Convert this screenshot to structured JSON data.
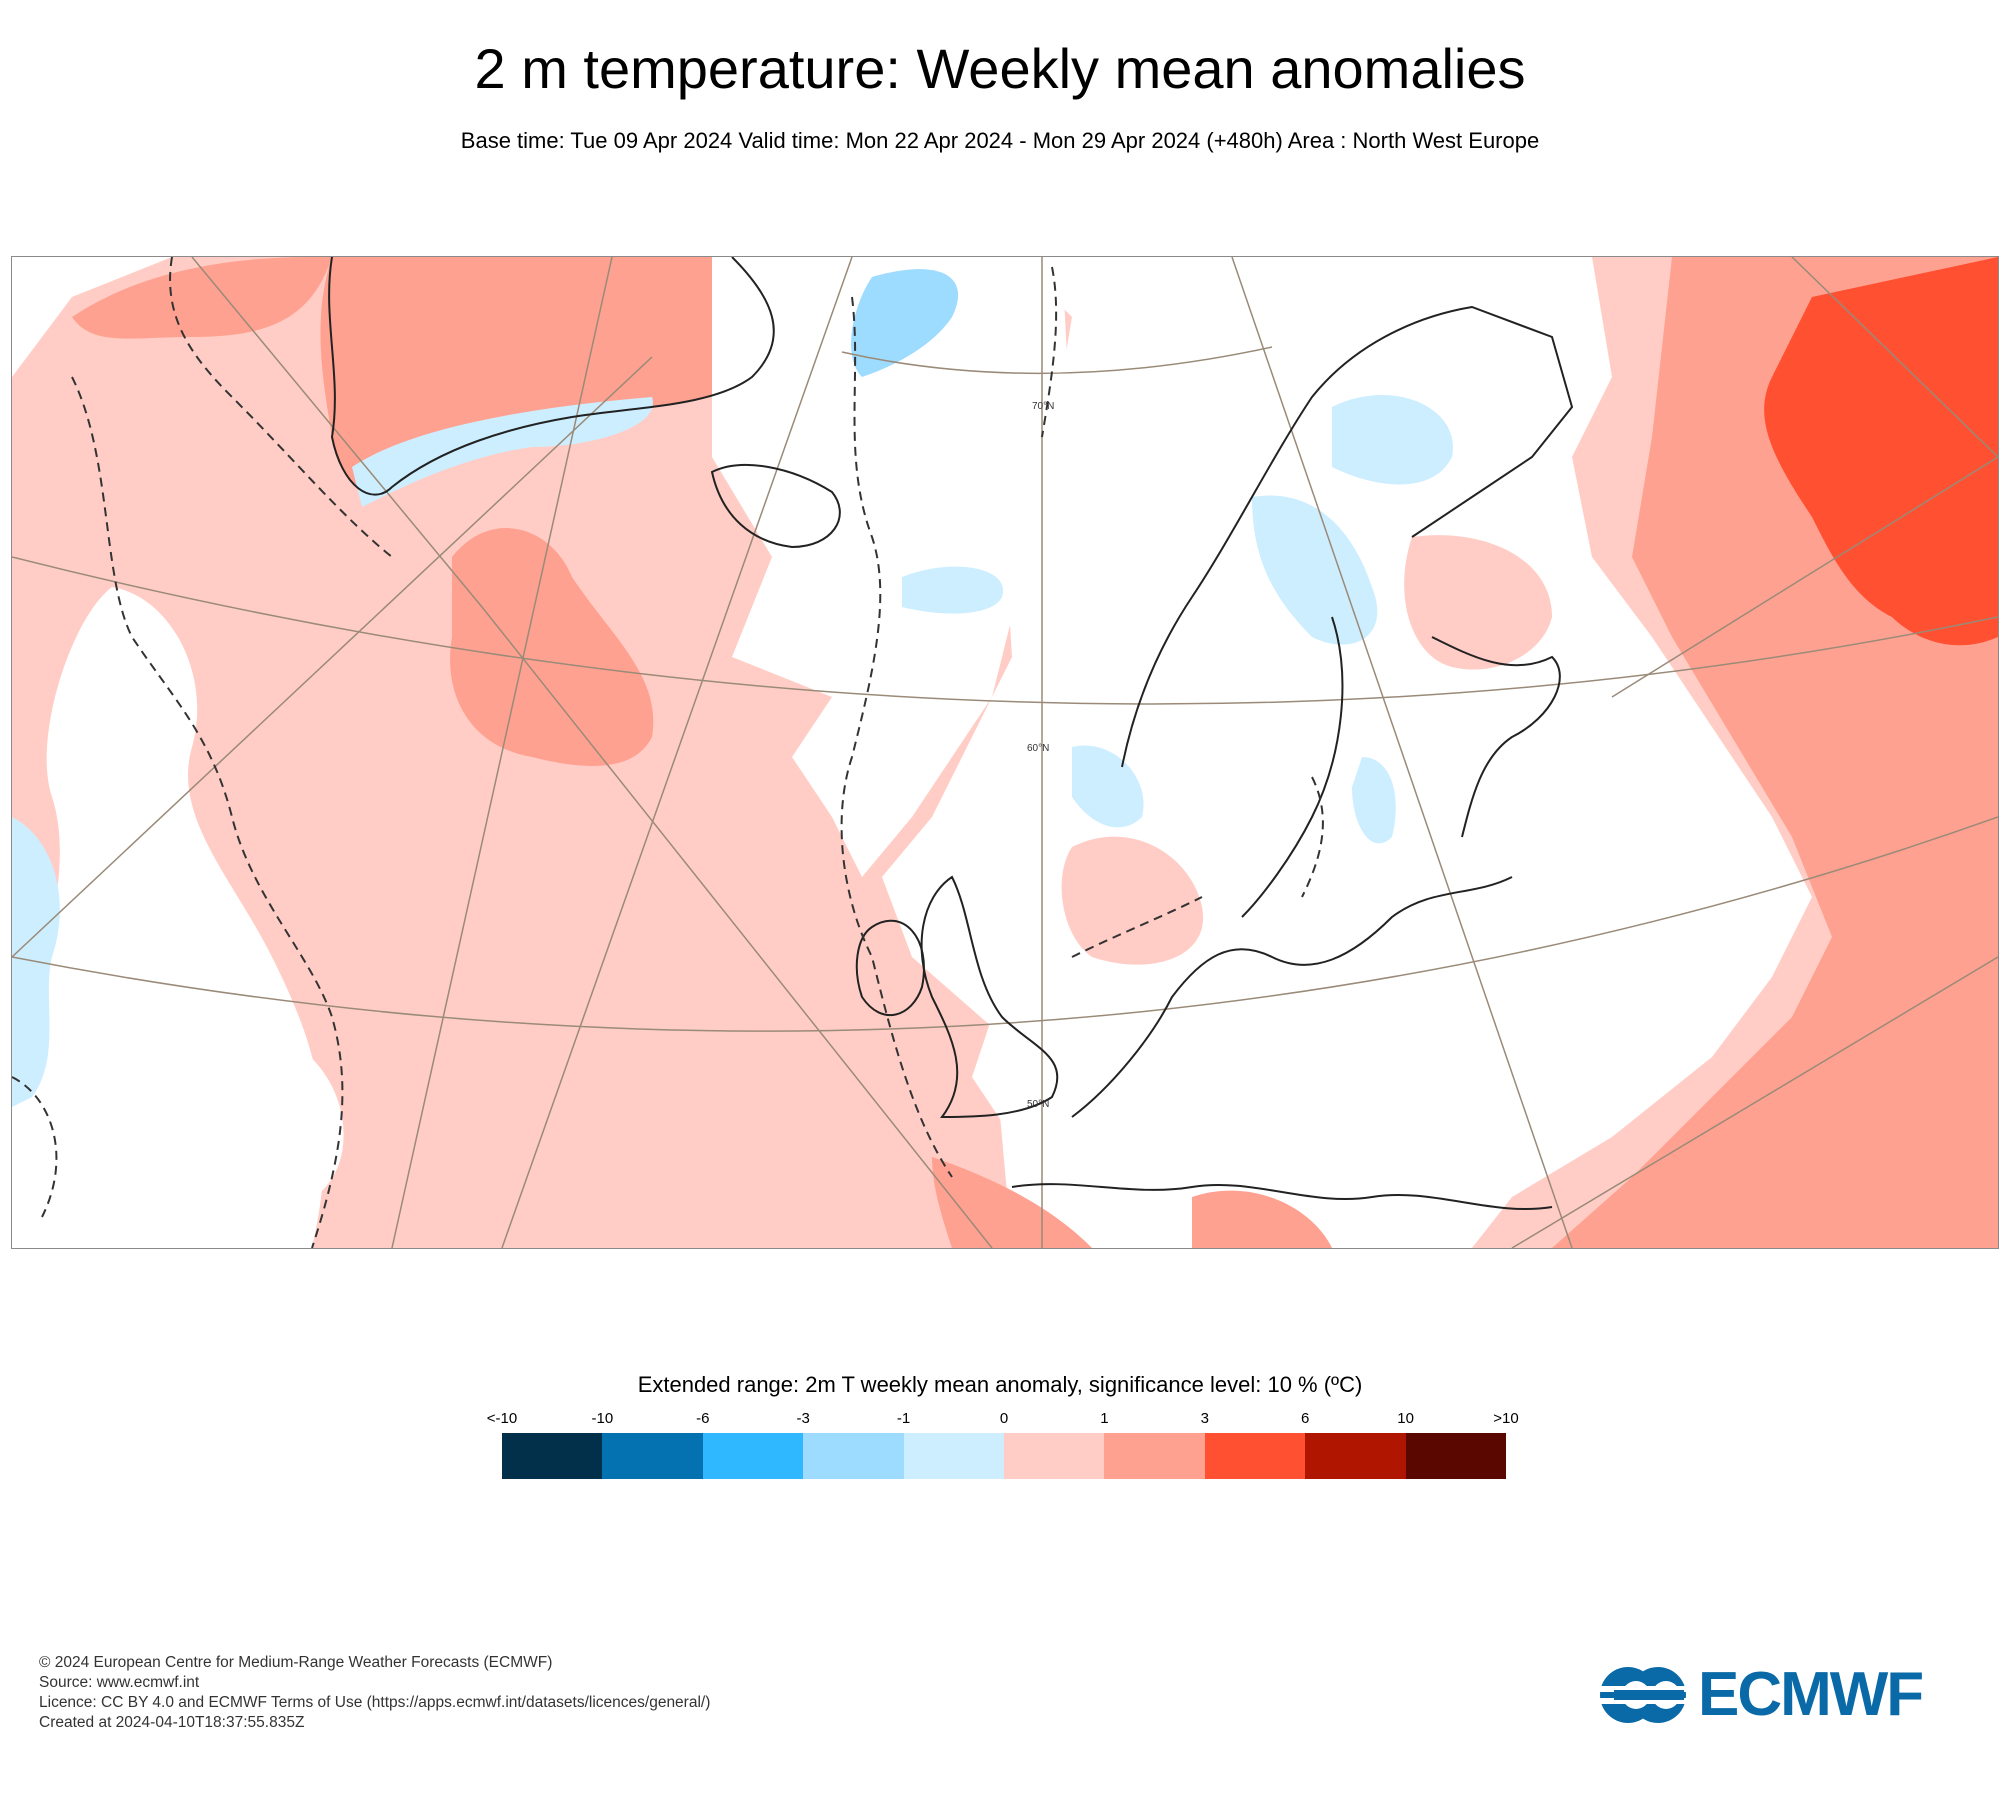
{
  "header": {
    "title": "2 m temperature: Weekly mean anomalies",
    "subtitle": "Base time: Tue 09 Apr 2024 Valid time: Mon 22 Apr 2024 - Mon 29 Apr 2024 (+480h) Area : North West Europe"
  },
  "map": {
    "graticule_labels": [
      "70°N",
      "60°N",
      "50°N"
    ]
  },
  "legend": {
    "title": "Extended range: 2m T weekly mean anomaly, significance level: 10 % (ºC)",
    "tick_labels": [
      "<-10",
      "-10",
      "-6",
      "-3",
      "-1",
      "0",
      "1",
      "3",
      "6",
      "10",
      ">10"
    ],
    "colors": [
      "#022f4a",
      "#0472b0",
      "#2fb8ff",
      "#9ddbff",
      "#cdeeff",
      "#ffcdc5",
      "#ffa190",
      "#ff5032",
      "#b01500",
      "#5a0700"
    ]
  },
  "footer": {
    "copyright": "© 2024 European Centre for Medium-Range Weather Forecasts (ECMWF)",
    "source": "Source: www.ecmwf.int",
    "licence": "Licence: CC BY 4.0 and ECMWF Terms of Use (https://apps.ecmwf.int/datasets/licences/general/)",
    "created": "Created at 2024-04-10T18:37:55.835Z"
  },
  "logo": {
    "text": "ECMWF",
    "color": "#0a6aa8"
  }
}
